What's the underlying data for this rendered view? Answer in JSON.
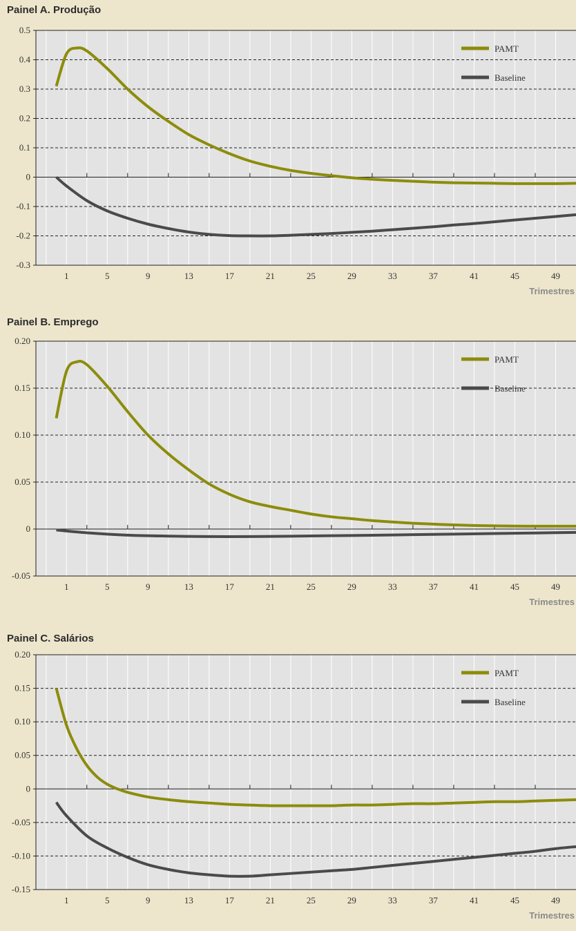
{
  "colors": {
    "page_background": "#ede6cc",
    "plot_background": "#e3e3e3",
    "pamt": "#8c8c0c",
    "baseline": "#4a4a4c",
    "grid_dashed": "#222222",
    "grid_vertical": "#ffffff"
  },
  "chart_data": [
    {
      "type": "line",
      "title": "Painel A. Produção",
      "xlabel": "Trimestres",
      "ylabel": "",
      "xlim": [
        -2,
        51
      ],
      "ylim": [
        -0.3,
        0.5
      ],
      "x_ticks": [
        1,
        5,
        9,
        13,
        17,
        21,
        25,
        29,
        33,
        37,
        41,
        45,
        49
      ],
      "x_tick_labels": [
        "1",
        "5",
        "9",
        "13",
        "17",
        "21",
        "25",
        "29",
        "33",
        "37",
        "41",
        "45",
        "49"
      ],
      "y_ticks": [
        -0.3,
        -0.2,
        -0.1,
        0,
        0.1,
        0.2,
        0.3,
        0.4,
        0.5
      ],
      "y_tick_labels": [
        "-0.3",
        "-0.2",
        "-0.1",
        "0",
        "0.1",
        "0.2",
        "0.3",
        "0.4",
        "0.5"
      ],
      "legend_position": "top-right",
      "series": [
        {
          "name": "PAMT",
          "x": [
            0,
            1,
            2,
            3,
            5,
            7,
            9,
            11,
            13,
            15,
            17,
            19,
            21,
            23,
            25,
            27,
            29,
            31,
            33,
            35,
            37,
            39,
            41,
            43,
            45,
            47,
            49,
            51
          ],
          "y": [
            0.31,
            0.42,
            0.44,
            0.43,
            0.37,
            0.3,
            0.24,
            0.19,
            0.145,
            0.11,
            0.08,
            0.055,
            0.037,
            0.023,
            0.013,
            0.005,
            -0.002,
            -0.007,
            -0.011,
            -0.014,
            -0.017,
            -0.019,
            -0.02,
            -0.021,
            -0.022,
            -0.022,
            -0.022,
            -0.021
          ]
        },
        {
          "name": "Baseline",
          "x": [
            0,
            1,
            3,
            5,
            7,
            9,
            11,
            13,
            15,
            17,
            19,
            21,
            23,
            25,
            27,
            29,
            31,
            33,
            35,
            37,
            39,
            41,
            43,
            45,
            47,
            49,
            51
          ],
          "y": [
            0.0,
            -0.03,
            -0.08,
            -0.115,
            -0.14,
            -0.16,
            -0.175,
            -0.187,
            -0.195,
            -0.199,
            -0.2,
            -0.2,
            -0.198,
            -0.195,
            -0.192,
            -0.188,
            -0.184,
            -0.179,
            -0.174,
            -0.169,
            -0.163,
            -0.158,
            -0.152,
            -0.146,
            -0.14,
            -0.134,
            -0.128
          ]
        }
      ]
    },
    {
      "type": "line",
      "title": "Painel B. Emprego",
      "xlabel": "Trimestres",
      "ylabel": "",
      "xlim": [
        -2,
        51
      ],
      "ylim": [
        -0.05,
        0.2
      ],
      "x_ticks": [
        1,
        5,
        9,
        13,
        17,
        21,
        25,
        29,
        33,
        37,
        41,
        45,
        49
      ],
      "x_tick_labels": [
        "1",
        "5",
        "9",
        "13",
        "17",
        "21",
        "25",
        "29",
        "33",
        "37",
        "41",
        "45",
        "49"
      ],
      "y_ticks": [
        -0.05,
        0,
        0.05,
        0.1,
        0.15,
        0.2
      ],
      "y_tick_labels": [
        "-0.05",
        "0",
        "0.05",
        "0.10",
        "0.15",
        "0.20"
      ],
      "legend_position": "top-right",
      "series": [
        {
          "name": "PAMT",
          "x": [
            0,
            1,
            2,
            3,
            5,
            7,
            9,
            11,
            13,
            15,
            17,
            19,
            21,
            23,
            25,
            27,
            29,
            31,
            33,
            35,
            37,
            39,
            41,
            43,
            45,
            47,
            49,
            51
          ],
          "y": [
            0.118,
            0.168,
            0.178,
            0.175,
            0.152,
            0.125,
            0.1,
            0.08,
            0.063,
            0.048,
            0.037,
            0.029,
            0.024,
            0.02,
            0.016,
            0.013,
            0.011,
            0.009,
            0.0075,
            0.0062,
            0.0052,
            0.0044,
            0.0038,
            0.0034,
            0.0031,
            0.003,
            0.003,
            0.003
          ]
        },
        {
          "name": "Baseline",
          "x": [
            0,
            3,
            7,
            11,
            15,
            19,
            23,
            27,
            31,
            35,
            39,
            43,
            47,
            51
          ],
          "y": [
            -0.001,
            -0.004,
            -0.0065,
            -0.0075,
            -0.008,
            -0.008,
            -0.0076,
            -0.0071,
            -0.0066,
            -0.006,
            -0.0054,
            -0.0048,
            -0.0042,
            -0.0036
          ]
        }
      ]
    },
    {
      "type": "line",
      "title": "Painel C. Salários",
      "xlabel": "Trimestres",
      "ylabel": "",
      "xlim": [
        -2,
        51
      ],
      "ylim": [
        -0.15,
        0.2
      ],
      "x_ticks": [
        1,
        5,
        9,
        13,
        17,
        21,
        25,
        29,
        33,
        37,
        41,
        45,
        49
      ],
      "x_tick_labels": [
        "1",
        "5",
        "9",
        "13",
        "17",
        "21",
        "25",
        "29",
        "33",
        "37",
        "41",
        "45",
        "49"
      ],
      "y_ticks": [
        -0.15,
        -0.1,
        -0.05,
        0,
        0.05,
        0.1,
        0.15,
        0.2
      ],
      "y_tick_labels": [
        "-0.15",
        "-0.10",
        "-0.05",
        "0",
        "0.05",
        "0.10",
        "0.15",
        "0.20"
      ],
      "legend_position": "top-right",
      "series": [
        {
          "name": "PAMT",
          "x": [
            0,
            1,
            2,
            3,
            4,
            5,
            6,
            7,
            9,
            11,
            13,
            15,
            17,
            19,
            21,
            23,
            25,
            27,
            29,
            31,
            33,
            35,
            37,
            39,
            41,
            43,
            45,
            47,
            49,
            51
          ],
          "y": [
            0.15,
            0.095,
            0.06,
            0.035,
            0.018,
            0.007,
            0.0,
            -0.005,
            -0.012,
            -0.016,
            -0.019,
            -0.021,
            -0.023,
            -0.024,
            -0.025,
            -0.025,
            -0.025,
            -0.025,
            -0.024,
            -0.024,
            -0.023,
            -0.022,
            -0.022,
            -0.021,
            -0.02,
            -0.019,
            -0.019,
            -0.018,
            -0.017,
            -0.016
          ]
        },
        {
          "name": "Baseline",
          "x": [
            0,
            1,
            3,
            5,
            7,
            9,
            11,
            13,
            15,
            17,
            19,
            21,
            23,
            25,
            27,
            29,
            31,
            33,
            35,
            37,
            39,
            41,
            43,
            45,
            47,
            49,
            51
          ],
          "y": [
            -0.02,
            -0.04,
            -0.07,
            -0.088,
            -0.102,
            -0.113,
            -0.12,
            -0.125,
            -0.128,
            -0.13,
            -0.13,
            -0.128,
            -0.126,
            -0.124,
            -0.122,
            -0.12,
            -0.117,
            -0.114,
            -0.111,
            -0.108,
            -0.105,
            -0.102,
            -0.099,
            -0.096,
            -0.093,
            -0.089,
            -0.086
          ]
        }
      ]
    }
  ]
}
